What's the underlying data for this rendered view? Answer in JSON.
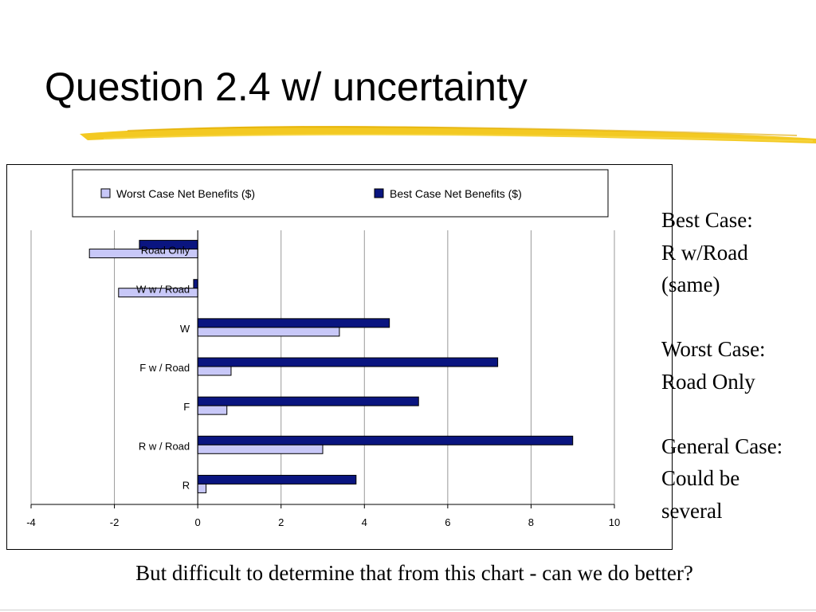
{
  "slide": {
    "title": "Question 2.4 w/ uncertainty",
    "underline_color": "#f2c40f",
    "notes": [
      [
        "Best Case:",
        "R w/Road",
        "(same)"
      ],
      [
        "Worst Case:",
        "Road Only"
      ],
      [
        "General Case:",
        "Could be",
        "several"
      ]
    ],
    "footer": "But difficult to determine that from this chart - can we do better?"
  },
  "chart_data": {
    "type": "bar",
    "orientation": "horizontal",
    "categories": [
      "Road Only",
      "W w / Road",
      "W",
      "F w / Road",
      "F",
      "R w / Road",
      "R"
    ],
    "series": [
      {
        "name": "Worst Case Net Benefits ($)",
        "values": [
          -2.6,
          -1.9,
          3.4,
          0.8,
          0.7,
          3.0,
          0.2
        ],
        "color": "#c8c8f8"
      },
      {
        "name": "Best Case Net Benefits ($)",
        "values": [
          -1.4,
          -0.1,
          4.6,
          7.2,
          5.3,
          9.0,
          3.8
        ],
        "color": "#0a1580"
      }
    ],
    "xlim": [
      -4,
      10
    ],
    "xticks": [
      "-4",
      "-2",
      "0",
      "2",
      "4",
      "6",
      "8",
      "10"
    ],
    "grid": true,
    "legend_position": "top"
  }
}
